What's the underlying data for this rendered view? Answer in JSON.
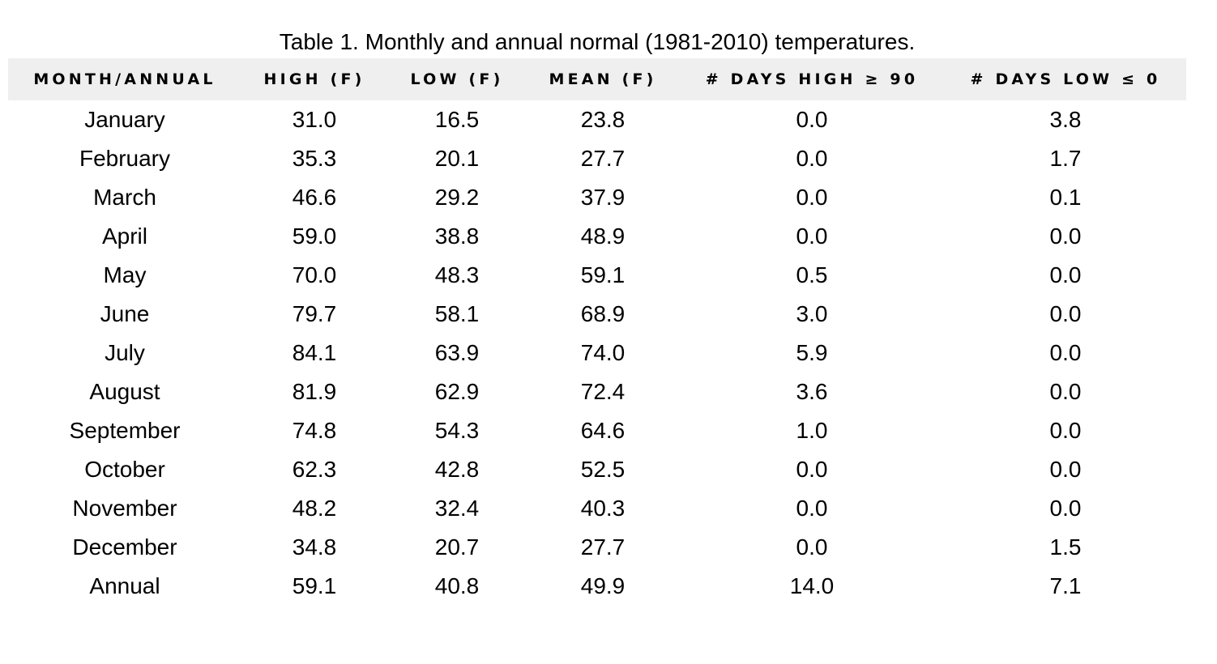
{
  "caption": "Table 1. Monthly and annual normal (1981-2010) temperatures.",
  "columns": [
    "MONTH/ANNUAL",
    "HIGH (F)",
    "LOW (F)",
    "MEAN (F)",
    "# DAYS HIGH ≥ 90",
    "# DAYS LOW ≤ 0"
  ],
  "rows": [
    [
      "January",
      "31.0",
      "16.5",
      "23.8",
      "0.0",
      "3.8"
    ],
    [
      "February",
      "35.3",
      "20.1",
      "27.7",
      "0.0",
      "1.7"
    ],
    [
      "March",
      "46.6",
      "29.2",
      "37.9",
      "0.0",
      "0.1"
    ],
    [
      "April",
      "59.0",
      "38.8",
      "48.9",
      "0.0",
      "0.0"
    ],
    [
      "May",
      "70.0",
      "48.3",
      "59.1",
      "0.5",
      "0.0"
    ],
    [
      "June",
      "79.7",
      "58.1",
      "68.9",
      "3.0",
      "0.0"
    ],
    [
      "July",
      "84.1",
      "63.9",
      "74.0",
      "5.9",
      "0.0"
    ],
    [
      "August",
      "81.9",
      "62.9",
      "72.4",
      "3.6",
      "0.0"
    ],
    [
      "September",
      "74.8",
      "54.3",
      "64.6",
      "1.0",
      "0.0"
    ],
    [
      "October",
      "62.3",
      "42.8",
      "52.5",
      "0.0",
      "0.0"
    ],
    [
      "November",
      "48.2",
      "32.4",
      "40.3",
      "0.0",
      "0.0"
    ],
    [
      "December",
      "34.8",
      "20.7",
      "27.7",
      "0.0",
      "1.5"
    ],
    [
      "Annual",
      "59.1",
      "40.8",
      "49.9",
      "14.0",
      "7.1"
    ]
  ],
  "colors": {
    "header_background": "#efefef",
    "text": "#000000",
    "page_background": "#ffffff"
  }
}
